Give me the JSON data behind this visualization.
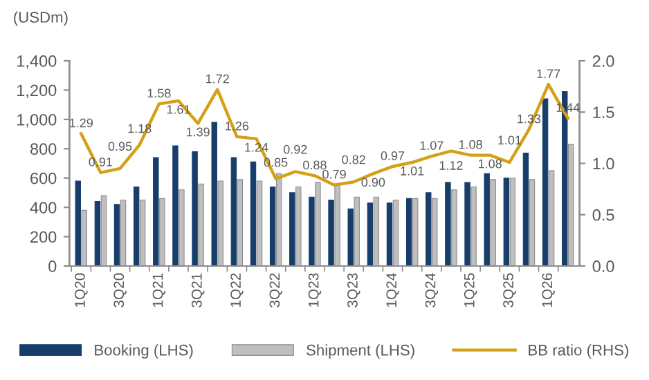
{
  "chart_data": {
    "type": "bar",
    "categories": [
      "1Q20",
      null,
      "3Q20",
      null,
      "1Q21",
      null,
      "3Q21",
      null,
      "1Q22",
      null,
      "3Q22",
      null,
      "1Q23",
      null,
      "3Q23",
      null,
      "1Q24",
      null,
      "3Q24",
      null,
      "1Q25",
      null,
      "3Q25",
      null,
      "1Q26",
      null
    ],
    "series": [
      {
        "name": "Booking (LHS)",
        "color": "#173e6b",
        "values": [
          580,
          440,
          420,
          540,
          740,
          820,
          780,
          980,
          740,
          710,
          540,
          500,
          470,
          450,
          390,
          430,
          430,
          460,
          500,
          570,
          570,
          630,
          600,
          770,
          1140,
          1190
        ]
      },
      {
        "name": "Shipment (LHS)",
        "color": "#bfbfbf",
        "values": [
          380,
          480,
          450,
          450,
          460,
          520,
          560,
          580,
          590,
          580,
          630,
          540,
          570,
          560,
          470,
          470,
          450,
          460,
          460,
          520,
          540,
          590,
          600,
          590,
          650,
          830
        ]
      },
      {
        "name": "BB ratio (RHS)",
        "type": "line",
        "axis": "y2",
        "color": "#d4a017",
        "marker": "none",
        "line_style": "solid",
        "values": [
          1.29,
          0.91,
          0.95,
          1.18,
          1.58,
          1.61,
          1.39,
          1.72,
          1.26,
          1.24,
          0.85,
          0.92,
          0.88,
          0.79,
          0.82,
          0.9,
          0.97,
          1.01,
          1.07,
          1.12,
          1.08,
          1.08,
          1.01,
          1.33,
          1.77,
          1.44
        ],
        "value_labels": [
          "1.29",
          "0.91",
          "0.95",
          "1.18",
          "1.58",
          "1.61",
          "1.39",
          "1.72",
          "1.26",
          "1.24",
          "0.85",
          "0.92",
          "0.88",
          "0.79",
          "0.82",
          "0.90",
          "0.97",
          "1.01",
          "1.07",
          "1.12",
          "1.08",
          "1.08",
          "1.01",
          "1.33",
          "1.77",
          "1.44"
        ]
      }
    ],
    "ylim": [
      0,
      1400
    ],
    "yticks": [
      {
        "value": 0,
        "label": "0"
      },
      {
        "value": 200,
        "label": "200"
      },
      {
        "value": 400,
        "label": "400"
      },
      {
        "value": 600,
        "label": "600"
      },
      {
        "value": 800,
        "label": "800"
      },
      {
        "value": 1000,
        "label": "1,000"
      },
      {
        "value": 1200,
        "label": "1,200"
      },
      {
        "value": 1400,
        "label": "1,400"
      }
    ],
    "y2lim": [
      0,
      2.0
    ],
    "y2ticks": [
      {
        "value": 0,
        "label": "0.0"
      },
      {
        "value": 0.5,
        "label": "0.5"
      },
      {
        "value": 1.0,
        "label": "1.0"
      },
      {
        "value": 1.5,
        "label": "1.5"
      },
      {
        "value": 2.0,
        "label": "2.0"
      }
    ],
    "annotations": [
      "(USDm)"
    ],
    "grid": false,
    "legend": "bottom"
  }
}
